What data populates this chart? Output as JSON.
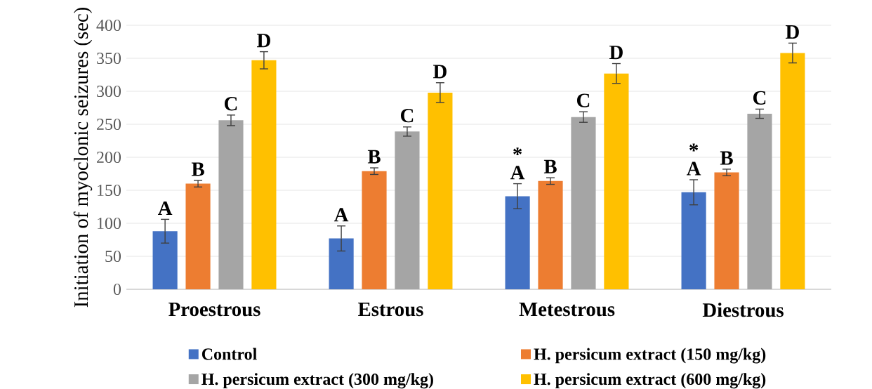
{
  "chart_data": {
    "type": "bar",
    "ylabel": "Initiation of myoclonic seizures (sec)",
    "categories": [
      "Proestrous",
      "Estrous",
      "Metestrous",
      "Diestrous"
    ],
    "series": [
      {
        "name": "Control",
        "color": "#4472c4",
        "values": [
          88,
          77,
          141,
          147
        ],
        "errors": [
          18,
          19,
          19,
          19
        ],
        "value_labels": [
          "A",
          "A",
          "A",
          "A"
        ]
      },
      {
        "name": "H. persicum extract (150 mg/kg)",
        "color": "#ed7d31",
        "values": [
          160,
          179,
          164,
          177
        ],
        "errors": [
          5,
          5,
          5,
          5
        ],
        "value_labels": [
          "B",
          "B",
          "B",
          "B"
        ]
      },
      {
        "name": "H. persicum extract (300 mg/kg)",
        "color": "#a5a5a5",
        "values": [
          256,
          239,
          261,
          266
        ],
        "errors": [
          8,
          7,
          8,
          7
        ],
        "value_labels": [
          "C",
          "C",
          "C",
          "C"
        ]
      },
      {
        "name": "H. persicum extract (600 mg/kg)",
        "color": "#ffc000",
        "values": [
          347,
          298,
          327,
          358
        ],
        "errors": [
          13,
          15,
          15,
          15
        ],
        "value_labels": [
          "D",
          "D",
          "D",
          "D"
        ]
      }
    ],
    "annotations": [
      "*",
      "*"
    ],
    "ylim": [
      0,
      400
    ],
    "yticks": [
      0,
      50,
      100,
      150,
      200,
      250,
      300,
      350,
      400
    ],
    "grid": "y",
    "legend": "bottom"
  }
}
